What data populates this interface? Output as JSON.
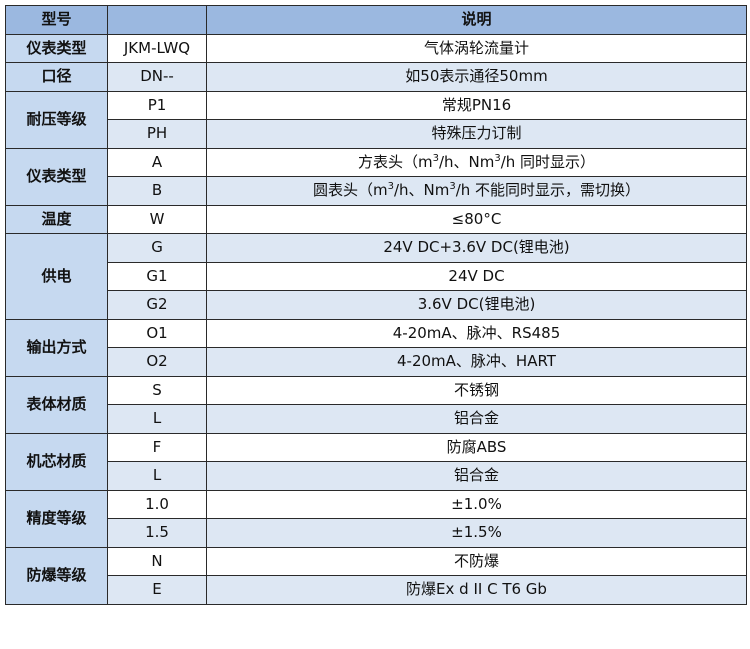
{
  "header": {
    "col1": "型号",
    "col2": "",
    "col3": "说明"
  },
  "colors": {
    "header_bg": "#9bb8e0",
    "group_bg": "#c6d9f0",
    "alt_row_bg": "#dde7f3",
    "border": "#2a2a2a"
  },
  "groups": [
    {
      "label": "仪表类型",
      "rows": [
        {
          "code": "JKM-LWQ",
          "desc": [
            {
              "t": "气体涡轮流量计"
            }
          ]
        }
      ]
    },
    {
      "label": "口径",
      "rows": [
        {
          "code": "DN--",
          "desc": [
            {
              "t": "如50表示通径50mm"
            }
          ]
        }
      ]
    },
    {
      "label": "耐压等级",
      "rows": [
        {
          "code": "P1",
          "desc": [
            {
              "t": "常规PN16"
            }
          ]
        },
        {
          "code": "PH",
          "desc": [
            {
              "t": "特殊压力订制"
            }
          ]
        }
      ]
    },
    {
      "label": "仪表类型",
      "rows": [
        {
          "code": "A",
          "desc": [
            {
              "t": "方表头（m"
            },
            {
              "t": "3",
              "sup": true
            },
            {
              "t": "/h、Nm"
            },
            {
              "t": "3",
              "sup": true
            },
            {
              "t": "/h 同时显示）"
            }
          ]
        },
        {
          "code": "B",
          "desc": [
            {
              "t": "圆表头（m"
            },
            {
              "t": "3",
              "sup": true
            },
            {
              "t": "/h、Nm"
            },
            {
              "t": "3",
              "sup": true
            },
            {
              "t": "/h 不能同时显示，需切换）"
            }
          ]
        }
      ]
    },
    {
      "label": "温度",
      "rows": [
        {
          "code": "W",
          "desc": [
            {
              "t": "≤80°C"
            }
          ]
        }
      ]
    },
    {
      "label": "供电",
      "rows": [
        {
          "code": "G",
          "desc": [
            {
              "t": "24V DC+3.6V DC(锂电池)"
            }
          ]
        },
        {
          "code": "G1",
          "desc": [
            {
              "t": "24V DC"
            }
          ]
        },
        {
          "code": "G2",
          "desc": [
            {
              "t": "3.6V DC(锂电池)"
            }
          ]
        }
      ]
    },
    {
      "label": "输出方式",
      "rows": [
        {
          "code": "O1",
          "desc": [
            {
              "t": "4-20mA、脉冲、RS485"
            }
          ]
        },
        {
          "code": "O2",
          "desc": [
            {
              "t": "4-20mA、脉冲、HART"
            }
          ]
        }
      ]
    },
    {
      "label": "表体材质",
      "rows": [
        {
          "code": "S",
          "desc": [
            {
              "t": "不锈钢"
            }
          ]
        },
        {
          "code": "L",
          "desc": [
            {
              "t": "铝合金"
            }
          ]
        }
      ]
    },
    {
      "label": "机芯材质",
      "rows": [
        {
          "code": "F",
          "desc": [
            {
              "t": "防腐ABS"
            }
          ]
        },
        {
          "code": "L",
          "desc": [
            {
              "t": "铝合金"
            }
          ]
        }
      ]
    },
    {
      "label": "精度等级",
      "rows": [
        {
          "code": "1.0",
          "desc": [
            {
              "t": "±1.0%"
            }
          ]
        },
        {
          "code": "1.5",
          "desc": [
            {
              "t": "±1.5%"
            }
          ]
        }
      ]
    },
    {
      "label": "防爆等级",
      "rows": [
        {
          "code": "N",
          "desc": [
            {
              "t": "不防爆"
            }
          ]
        },
        {
          "code": "E",
          "desc": [
            {
              "t": "防爆Ex d II C T6 Gb"
            }
          ]
        }
      ]
    }
  ]
}
